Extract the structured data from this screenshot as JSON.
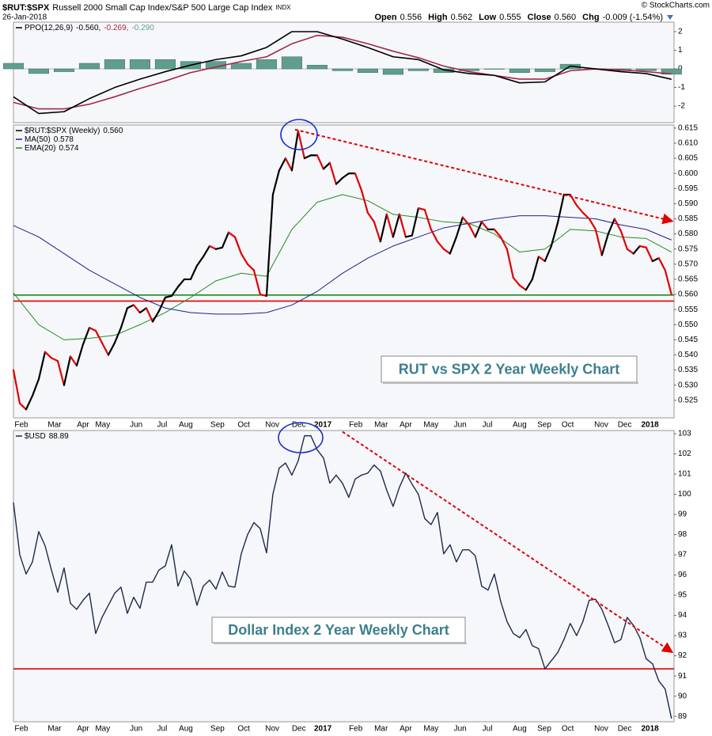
{
  "header": {
    "symbol": "$RUT:$SPX",
    "description": "Russell 2000 Small Cap Index/S&P 500 Large Cap Index",
    "exchange": "INDX",
    "date": "26-Jan-2018",
    "quote": [
      {
        "label": "Open",
        "value": "0.556"
      },
      {
        "label": "High",
        "value": "0.562"
      },
      {
        "label": "Low",
        "value": "0.555"
      },
      {
        "label": "Close",
        "value": "0.560"
      },
      {
        "label": "Chg",
        "value": "-0.009 (-1.54%)"
      }
    ],
    "credit": "© StockCharts.com"
  },
  "chart_data": [
    {
      "type": "line",
      "title": "PPO(12,26,9)",
      "xlim": [
        0,
        104.4
      ],
      "ylim": [
        -2.89,
        2.51
      ],
      "yticks": [
        2,
        1,
        0,
        -1,
        -2
      ],
      "series": [
        {
          "color": "#000000",
          "legend_value": "-0.560,",
          "x": [
            0,
            4,
            8,
            12,
            16,
            20,
            24,
            28,
            32,
            36,
            40,
            44,
            48,
            52,
            56,
            60,
            64,
            68,
            72,
            76,
            80,
            84,
            88,
            92,
            96,
            100,
            104
          ],
          "values": [
            -1.5,
            -2.4,
            -2.3,
            -1.6,
            -1.0,
            -0.55,
            -0.15,
            0.2,
            0.5,
            0.7,
            1.15,
            2.0,
            2.0,
            1.6,
            1.15,
            0.65,
            0.5,
            -0.05,
            -0.25,
            -0.35,
            -0.75,
            -0.7,
            0.15,
            0,
            -0.15,
            -0.25,
            -0.56
          ]
        },
        {
          "color": "#a3284a",
          "legend_value": "-0.269,",
          "x": [
            0,
            4,
            8,
            12,
            16,
            20,
            24,
            28,
            32,
            36,
            40,
            44,
            48,
            52,
            56,
            60,
            64,
            68,
            72,
            76,
            80,
            84,
            88,
            92,
            96,
            100,
            104
          ],
          "values": [
            -1.8,
            -2.15,
            -2.15,
            -1.9,
            -1.5,
            -1.05,
            -0.65,
            -0.2,
            0.1,
            0.4,
            0.65,
            1.35,
            1.8,
            1.7,
            1.35,
            0.95,
            0.6,
            0.15,
            -0.15,
            -0.35,
            -0.55,
            -0.55,
            -0.1,
            0,
            -0.05,
            -0.15,
            -0.269
          ]
        },
        {
          "color": "#5f9e8f",
          "style": "histogram",
          "legend_value": "-0.290",
          "x": [
            0,
            4,
            8,
            12,
            16,
            20,
            24,
            28,
            32,
            36,
            40,
            44,
            48,
            52,
            56,
            60,
            64,
            68,
            72,
            76,
            80,
            84,
            88,
            92,
            96,
            100,
            104
          ],
          "values": [
            0.3,
            -0.25,
            -0.15,
            0.3,
            0.5,
            0.5,
            0.5,
            0.4,
            0.4,
            0.3,
            0.5,
            0.65,
            0.2,
            -0.1,
            -0.2,
            -0.3,
            -0.1,
            -0.2,
            -0.1,
            0,
            -0.2,
            -0.15,
            0.25,
            0,
            -0.1,
            -0.1,
            -0.29
          ]
        }
      ]
    },
    {
      "type": "line",
      "xlim": [
        0,
        104.4
      ],
      "ylim": [
        0.5192,
        0.616
      ],
      "yticks": [
        0.525,
        {
          "value": 0.53,
          "label": "0.530"
        },
        0.535,
        {
          "value": 0.54,
          "label": "0.540"
        },
        0.545,
        {
          "value": 0.55,
          "label": "0.550"
        },
        0.555,
        {
          "value": 0.56,
          "label": "0.560"
        },
        0.565,
        {
          "value": 0.57,
          "label": "0.570"
        },
        0.575,
        {
          "value": 0.58,
          "label": "0.580"
        },
        0.585,
        {
          "value": 0.59,
          "label": "0.590"
        },
        0.595,
        {
          "value": 0.6,
          "label": "0.600"
        },
        0.605,
        {
          "value": 0.61,
          "label": "0.610"
        },
        0.615
      ],
      "xticks": [
        {
          "value": 1.25,
          "label": "Feb"
        },
        {
          "value": 6.5,
          "label": "Mar"
        },
        {
          "value": 11,
          "label": "Apr"
        },
        {
          "value": 14.1,
          "label": "May"
        },
        {
          "value": 19.4,
          "label": "Jun"
        },
        {
          "value": 23.5,
          "label": "Jul"
        },
        {
          "value": 27.25,
          "label": "Aug"
        },
        {
          "value": 32.25,
          "label": "Sep"
        },
        {
          "value": 36.4,
          "label": "Oct"
        },
        {
          "value": 40.9,
          "label": "Nov"
        },
        {
          "value": 45.1,
          "label": "Dec"
        },
        {
          "value": 48.9,
          "label": "2017"
        },
        {
          "value": 54.1,
          "label": "Feb"
        },
        {
          "value": 58.1,
          "label": "Mar"
        },
        {
          "value": 62,
          "label": "Apr"
        },
        {
          "value": 66,
          "label": "May"
        },
        {
          "value": 70.6,
          "label": "Jun"
        },
        {
          "value": 74.9,
          "label": "Jul"
        },
        {
          "value": 80,
          "label": "Aug"
        },
        {
          "value": 83.9,
          "label": "Sep"
        },
        {
          "value": 87.6,
          "label": "Oct"
        },
        {
          "value": 92.9,
          "label": "Nov"
        },
        {
          "value": 96.6,
          "label": "Dec"
        },
        {
          "value": 100.6,
          "label": "2018"
        }
      ],
      "hlines": [
        {
          "value": 0.5598,
          "color": "#1a8a1a"
        },
        {
          "value": 0.5578,
          "color": "#e00000"
        }
      ],
      "trendline": {
        "color": "#e00000",
        "x": [
          44.5,
          104
        ],
        "values": [
          0.6145,
          0.5843
        ]
      },
      "annotation": "RUT vs SPX 2 Year Weekly Chart",
      "series": [
        {
          "name": "$RUT:$SPX (Weekly)",
          "legend_value": "0.560",
          "color": "#000000",
          "down_color": "#e00000",
          "x": [
            0,
            1,
            2,
            3,
            4,
            5,
            6,
            7,
            8,
            9,
            10,
            11,
            12,
            13,
            14,
            15,
            16,
            17,
            18,
            19,
            20,
            21,
            22,
            23,
            24,
            25,
            26,
            27,
            28,
            29,
            30,
            31,
            32,
            33,
            34,
            35,
            36,
            37,
            38,
            39,
            40,
            41,
            42,
            43,
            44,
            45,
            46,
            47,
            48,
            49,
            50,
            51,
            52,
            53,
            54,
            55,
            56,
            57,
            58,
            59,
            60,
            61,
            62,
            63,
            64,
            65,
            66,
            67,
            68,
            69,
            70,
            71,
            72,
            73,
            74,
            75,
            76,
            77,
            78,
            79,
            80,
            81,
            82,
            83,
            84,
            85,
            86,
            87,
            88,
            89,
            90,
            91,
            92,
            93,
            94,
            95,
            96,
            97,
            98,
            99,
            100,
            101,
            102,
            103,
            104
          ],
          "values": [
            0.535,
            0.524,
            0.522,
            0.5265,
            0.532,
            0.541,
            0.539,
            0.538,
            0.53,
            0.5395,
            0.5365,
            0.5435,
            0.549,
            0.548,
            0.544,
            0.54,
            0.544,
            0.549,
            0.5555,
            0.5565,
            0.554,
            0.5555,
            0.551,
            0.5545,
            0.559,
            0.5595,
            0.5625,
            0.565,
            0.565,
            0.5695,
            0.5725,
            0.576,
            0.575,
            0.5755,
            0.5805,
            0.579,
            0.5735,
            0.57,
            0.568,
            0.56,
            0.5595,
            0.593,
            0.601,
            0.605,
            0.601,
            0.614,
            0.605,
            0.606,
            0.606,
            0.6015,
            0.6035,
            0.5965,
            0.5985,
            0.6,
            0.6,
            0.5945,
            0.587,
            0.584,
            0.5775,
            0.5865,
            0.579,
            0.5865,
            0.579,
            0.5795,
            0.5885,
            0.588,
            0.5815,
            0.5775,
            0.575,
            0.5735,
            0.579,
            0.5855,
            0.583,
            0.579,
            0.584,
            0.5815,
            0.5815,
            0.579,
            0.575,
            0.5655,
            0.563,
            0.5615,
            0.565,
            0.5725,
            0.571,
            0.576,
            0.5835,
            0.593,
            0.593,
            0.5895,
            0.587,
            0.585,
            0.5815,
            0.573,
            0.58,
            0.585,
            0.581,
            0.575,
            0.5735,
            0.576,
            0.5755,
            0.571,
            0.572,
            0.568,
            0.56
          ]
        },
        {
          "name": "MA(50)",
          "legend_value": "0.578",
          "color": "#1f1f8f",
          "x": [
            0,
            4,
            8,
            12,
            16,
            20,
            24,
            28,
            32,
            36,
            40,
            44,
            48,
            52,
            56,
            60,
            64,
            68,
            72,
            76,
            80,
            84,
            88,
            92,
            96,
            100,
            104
          ],
          "values": [
            0.5828,
            0.579,
            0.5735,
            0.568,
            0.5635,
            0.559,
            0.5555,
            0.554,
            0.5535,
            0.5535,
            0.554,
            0.5565,
            0.561,
            0.567,
            0.572,
            0.576,
            0.579,
            0.582,
            0.5835,
            0.585,
            0.586,
            0.586,
            0.5855,
            0.585,
            0.583,
            0.5815,
            0.578
          ]
        },
        {
          "name": "EMA(20)",
          "legend_value": "0.574",
          "color": "#228b22",
          "x": [
            0,
            4,
            8,
            12,
            16,
            20,
            24,
            28,
            32,
            36,
            40,
            44,
            48,
            52,
            56,
            60,
            64,
            68,
            72,
            76,
            80,
            84,
            88,
            92,
            96,
            100,
            104
          ],
          "values": [
            0.5605,
            0.55,
            0.545,
            0.5455,
            0.5465,
            0.55,
            0.554,
            0.559,
            0.5645,
            0.567,
            0.566,
            0.5815,
            0.5905,
            0.593,
            0.591,
            0.5865,
            0.5855,
            0.584,
            0.5835,
            0.58,
            0.574,
            0.575,
            0.5815,
            0.581,
            0.579,
            0.5785,
            0.574
          ]
        }
      ]
    },
    {
      "type": "line",
      "xlim": [
        0,
        104.4
      ],
      "ylim": [
        88.73,
        103.16
      ],
      "yticks": [
        89,
        90,
        91,
        92,
        93,
        94,
        95,
        96,
        97,
        98,
        99,
        100,
        101,
        102,
        103
      ],
      "xticks": [
        {
          "value": 1.25,
          "label": "Feb"
        },
        {
          "value": 6.5,
          "label": "Mar"
        },
        {
          "value": 11,
          "label": "Apr"
        },
        {
          "value": 14.1,
          "label": "May"
        },
        {
          "value": 19.4,
          "label": "Jun"
        },
        {
          "value": 23.5,
          "label": "Jul"
        },
        {
          "value": 27.25,
          "label": "Aug"
        },
        {
          "value": 32.25,
          "label": "Sep"
        },
        {
          "value": 36.4,
          "label": "Oct"
        },
        {
          "value": 40.9,
          "label": "Nov"
        },
        {
          "value": 45.1,
          "label": "Dec"
        },
        {
          "value": 48.9,
          "label": "2017"
        },
        {
          "value": 54.1,
          "label": "Feb"
        },
        {
          "value": 58.1,
          "label": "Mar"
        },
        {
          "value": 62,
          "label": "Apr"
        },
        {
          "value": 66,
          "label": "May"
        },
        {
          "value": 70.6,
          "label": "Jun"
        },
        {
          "value": 74.9,
          "label": "Jul"
        },
        {
          "value": 80,
          "label": "Aug"
        },
        {
          "value": 83.9,
          "label": "Sep"
        },
        {
          "value": 87.6,
          "label": "Oct"
        },
        {
          "value": 92.9,
          "label": "Nov"
        },
        {
          "value": 96.6,
          "label": "Dec"
        },
        {
          "value": 100.6,
          "label": "2018"
        }
      ],
      "hlines": [
        {
          "value": 91.35,
          "color": "#e00000"
        }
      ],
      "trendline": {
        "color": "#e00000",
        "x": [
          52,
          104
        ],
        "values": [
          103.1,
          92.2
        ]
      },
      "annotation": "Dollar Index 2 Year Weekly Chart",
      "series": [
        {
          "name": "$USD",
          "legend_value": "88.89",
          "color": "#1c2a4a",
          "x": [
            0,
            1,
            2,
            3,
            4,
            5,
            6,
            7,
            8,
            9,
            10,
            11,
            12,
            13,
            14,
            15,
            16,
            17,
            18,
            19,
            20,
            21,
            22,
            23,
            24,
            25,
            26,
            27,
            28,
            29,
            30,
            31,
            32,
            33,
            34,
            35,
            36,
            37,
            38,
            39,
            40,
            41,
            42,
            43,
            44,
            45,
            46,
            47,
            48,
            49,
            50,
            51,
            52,
            53,
            54,
            55,
            56,
            57,
            58,
            59,
            60,
            61,
            62,
            63,
            64,
            65,
            66,
            67,
            68,
            69,
            70,
            71,
            72,
            73,
            74,
            75,
            76,
            77,
            78,
            79,
            80,
            81,
            82,
            83,
            84,
            85,
            86,
            87,
            88,
            89,
            90,
            91,
            92,
            93,
            94,
            95,
            96,
            97,
            98,
            99,
            100,
            101,
            102,
            103,
            104
          ],
          "values": [
            99.6,
            97.0,
            96.05,
            96.65,
            98.15,
            97.45,
            96.25,
            95.15,
            96.35,
            94.6,
            94.3,
            94.75,
            95.1,
            93.1,
            93.9,
            94.5,
            95.1,
            95.4,
            94.1,
            94.9,
            94.35,
            95.65,
            95.65,
            96.25,
            96.45,
            97.5,
            95.45,
            96.2,
            95.8,
            94.5,
            95.45,
            95.75,
            95.3,
            96.15,
            95.45,
            95.4,
            97.05,
            98.0,
            98.6,
            98.3,
            97.1,
            100,
            101.3,
            101.55,
            100.95,
            101.65,
            102.9,
            102.9,
            102.2,
            101.8,
            100.55,
            100.95,
            100.55,
            99.85,
            100.75,
            100.95,
            101.05,
            101.45,
            101.15,
            100.2,
            99.4,
            100.35,
            101.05,
            100.5,
            100,
            98.8,
            98.5,
            99.1,
            97.05,
            97.5,
            96.65,
            97.25,
            97.25,
            96.95,
            95.45,
            95.25,
            96.05,
            94.7,
            93.7,
            93.1,
            92.9,
            93.3,
            92.5,
            92.35,
            91.35,
            91.75,
            92.15,
            92.8,
            93.6,
            93.0,
            93.7,
            94.75,
            94.8,
            94.3,
            93.5,
            92.65,
            92.8,
            93.9,
            93.5,
            92.9,
            91.85,
            91.6,
            90.75,
            90.35,
            88.89
          ]
        }
      ]
    }
  ]
}
